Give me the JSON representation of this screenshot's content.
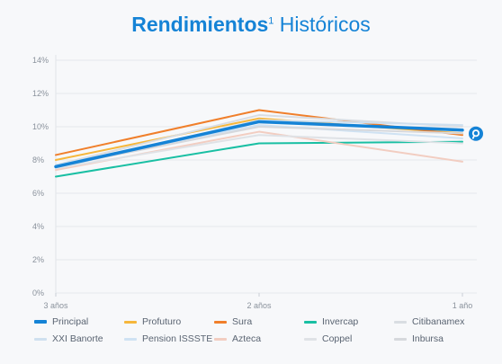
{
  "title": {
    "bold": "Rendimientos",
    "sup": "1",
    "rest": " Históricos"
  },
  "chart_data": {
    "type": "line",
    "categories": [
      "3 años",
      "2 años",
      "1 año"
    ],
    "ylim": [
      0,
      14
    ],
    "yticks": [
      0,
      2,
      4,
      6,
      8,
      10,
      12,
      14
    ],
    "ytick_labels": [
      "0%",
      "2%",
      "4%",
      "6%",
      "8%",
      "10%",
      "12%",
      "14%"
    ],
    "grid": true,
    "legend": "bottom",
    "series": [
      {
        "name": "Principal",
        "values": [
          7.6,
          10.3,
          9.8
        ],
        "color": "#1583d6",
        "width": 3.5,
        "marker": "principal-pin-icon"
      },
      {
        "name": "Profuturo",
        "values": [
          8.0,
          10.5,
          9.6
        ],
        "color": "#f6b73c",
        "width": 2
      },
      {
        "name": "Sura",
        "values": [
          8.3,
          11.0,
          9.5
        ],
        "color": "#f07f2b",
        "width": 2
      },
      {
        "name": "Invercap",
        "values": [
          7.0,
          9.0,
          9.1
        ],
        "color": "#19bfa3",
        "width": 2
      },
      {
        "name": "Citibanamex",
        "values": [
          7.7,
          10.7,
          10.0
        ],
        "color": "#d9dde2",
        "width": 2
      },
      {
        "name": "XXI Banorte",
        "values": [
          7.5,
          10.4,
          10.1
        ],
        "color": "#cfe0ef",
        "width": 2
      },
      {
        "name": "Pension ISSSTE",
        "values": [
          7.7,
          10.1,
          9.3
        ],
        "color": "#cfe2f3",
        "width": 2
      },
      {
        "name": "Azteca",
        "values": [
          7.4,
          9.7,
          7.9
        ],
        "color": "#f2cdc1",
        "width": 2
      },
      {
        "name": "Coppel",
        "values": [
          7.5,
          9.5,
          9.0
        ],
        "color": "#dfe2e6",
        "width": 2
      },
      {
        "name": "Inbursa",
        "values": [
          7.6,
          10.0,
          9.6
        ],
        "color": "#d6d8dc",
        "width": 2
      }
    ]
  }
}
